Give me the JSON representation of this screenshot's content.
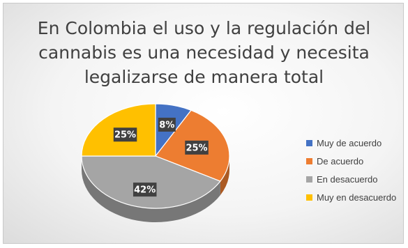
{
  "chart_data": {
    "type": "pie",
    "style": "3d",
    "title": "En Colombia el uso y la regulación del cannabis es una necesidad y necesita legalizarse de manera total",
    "title_lines": [
      "En Colombia el uso y la regulación del",
      "cannabis es una necesidad y necesita",
      "legalizarse de manera total"
    ],
    "categories": [
      "Muy de acuerdo",
      "De acuerdo",
      "En desacuerdo",
      "Muy en desacuerdo"
    ],
    "values": [
      8,
      25,
      42,
      25
    ],
    "labels": [
      "8%",
      "25%",
      "42%",
      "25%"
    ],
    "colors": [
      "#4472c4",
      "#ed7d31",
      "#a5a5a5",
      "#ffc000"
    ],
    "legend_position": "right"
  }
}
